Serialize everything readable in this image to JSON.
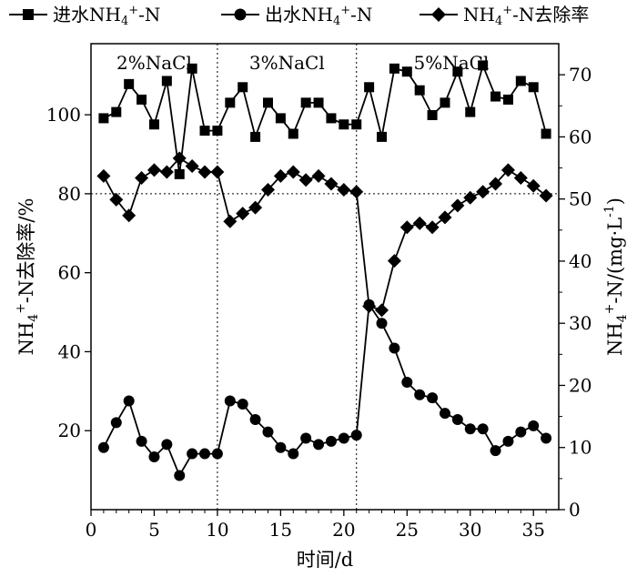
{
  "chart_data": {
    "type": "line",
    "xlabel": "时间/d",
    "ylabel_left": "NH4+-N去除率/%",
    "ylabel_right": "NH4+-N/(mg·L-1)",
    "xlim": [
      0,
      37
    ],
    "ylim_left": [
      0,
      118
    ],
    "ylim_right": [
      0,
      75
    ],
    "x_ticks": [
      0,
      5,
      10,
      15,
      20,
      25,
      30,
      35
    ],
    "y_left_ticks": [
      20,
      40,
      60,
      80,
      100
    ],
    "y_right_ticks": [
      0,
      10,
      20,
      30,
      40,
      50,
      60,
      70
    ],
    "grid": false,
    "legend_position": "top",
    "reference_line_left": 80,
    "phase_boundaries": [
      10,
      21
    ],
    "phases": [
      {
        "label": "2%NaCl",
        "x_center": 5
      },
      {
        "label": "3%NaCl",
        "x_center": 15.5
      },
      {
        "label": "5%NaCl",
        "x_center": 28.5
      }
    ],
    "x": [
      1,
      2,
      3,
      4,
      5,
      6,
      7,
      8,
      9,
      10,
      11,
      12,
      13,
      14,
      15,
      16,
      17,
      18,
      19,
      20,
      21,
      22,
      23,
      24,
      25,
      26,
      27,
      28,
      29,
      30,
      31,
      32,
      33,
      34,
      35,
      36
    ],
    "series": [
      {
        "name": "进水NH4+-N",
        "axis": "right",
        "marker": "square",
        "values": [
          63,
          64,
          68.5,
          66,
          62,
          69,
          54,
          71,
          61,
          61,
          65.5,
          68,
          60,
          65.5,
          63,
          60.5,
          65.5,
          65.5,
          63,
          62,
          62,
          68,
          60,
          71,
          70.5,
          67.5,
          63.5,
          65.5,
          70.5,
          64,
          71.5,
          66.5,
          66,
          69,
          68,
          60.5
        ]
      },
      {
        "name": "出水NH4+-N",
        "axis": "right",
        "marker": "circle",
        "values": [
          10,
          14,
          17.5,
          11,
          8.5,
          10.5,
          5.5,
          9,
          9,
          9,
          17.5,
          17,
          14.5,
          12.5,
          10,
          9,
          11.5,
          10.5,
          11,
          11.5,
          12,
          33,
          30,
          26,
          20.5,
          18.5,
          18,
          15.5,
          14.5,
          13,
          13,
          9.5,
          11,
          12.5,
          13.5,
          11.5
        ]
      },
      {
        "name": "NH4+-N去除率",
        "axis": "left",
        "marker": "diamond",
        "values": [
          84.5,
          78.5,
          74.5,
          84,
          86,
          85.5,
          89,
          87,
          85.5,
          85.5,
          73,
          75,
          76.5,
          81,
          84.5,
          85.5,
          83.5,
          84.5,
          82.5,
          81,
          80.5,
          51.5,
          50.5,
          63,
          71.5,
          72.5,
          71.5,
          74,
          77,
          79,
          80.5,
          82.5,
          86,
          84,
          82,
          79.5
        ]
      }
    ]
  }
}
